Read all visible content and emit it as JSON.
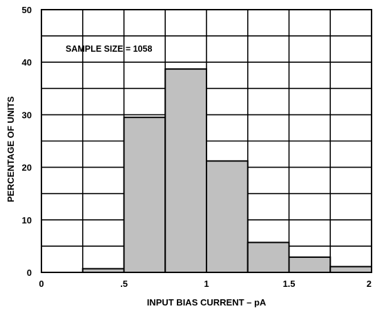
{
  "chart_data": {
    "type": "bar",
    "title": "",
    "xlabel": "INPUT BIAS CURRENT – pA",
    "ylabel": "PERCENTAGE OF UNITS",
    "annotation": "SAMPLE SIZE = 1058",
    "xlim": [
      0,
      2
    ],
    "ylim": [
      0,
      50
    ],
    "grid": true,
    "bin_width": 0.25,
    "bins": [
      {
        "x0": 0.25,
        "x1": 0.5,
        "value": 0.7
      },
      {
        "x0": 0.5,
        "x1": 0.75,
        "value": 29.5
      },
      {
        "x0": 0.75,
        "x1": 1.0,
        "value": 38.7
      },
      {
        "x0": 1.0,
        "x1": 1.25,
        "value": 21.2
      },
      {
        "x0": 1.25,
        "x1": 1.5,
        "value": 5.7
      },
      {
        "x0": 1.5,
        "x1": 1.75,
        "value": 2.9
      },
      {
        "x0": 1.75,
        "x1": 2.0,
        "value": 1.1
      }
    ],
    "x_ticks": [
      {
        "value": 0,
        "label": "0"
      },
      {
        "value": 0.5,
        "label": ".5"
      },
      {
        "value": 1,
        "label": "1"
      },
      {
        "value": 1.5,
        "label": "1.5"
      },
      {
        "value": 2,
        "label": "2"
      }
    ],
    "y_ticks": [
      {
        "value": 0,
        "label": "0"
      },
      {
        "value": 10,
        "label": "10"
      },
      {
        "value": 20,
        "label": "20"
      },
      {
        "value": 30,
        "label": "30"
      },
      {
        "value": 40,
        "label": "40"
      },
      {
        "value": 50,
        "label": "50"
      }
    ],
    "colors": {
      "bar": "#c0c0c0",
      "line": "#000000",
      "background": "#ffffff"
    }
  }
}
